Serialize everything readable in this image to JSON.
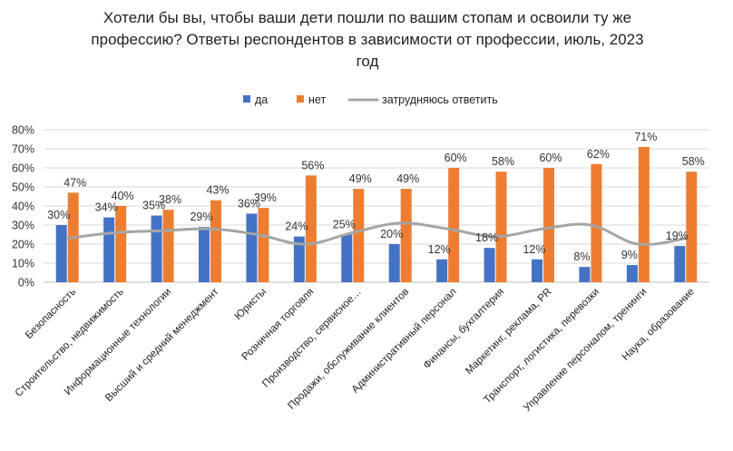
{
  "chart_data": {
    "type": "bar",
    "title_lines": [
      "Хотели бы вы, чтобы ваши дети пошли по вашим стопам и освоили ту же",
      "профессию? Ответы респондентов в зависимости от профессии, июль, 2023",
      "год"
    ],
    "categories": [
      "Безопасность",
      "Строительство, недвижимость",
      "Информационные технологии",
      "Высший и средний менеджмент",
      "Юристы",
      "Розничная торговля",
      "Производство, сервисное…",
      "Продажи, обслуживание клиентов",
      "Административный персонал",
      "Финансы, бухгалтерия",
      "Маркетинг, реклама, PR",
      "Транспорт, логистика, перевозки",
      "Управление персоналом, тренинги",
      "Наука, образование"
    ],
    "series": [
      {
        "name": "да",
        "kind": "bar",
        "color": "#4472C4",
        "values": [
          30,
          34,
          35,
          29,
          36,
          24,
          25,
          20,
          12,
          18,
          12,
          8,
          9,
          19
        ]
      },
      {
        "name": "нет",
        "kind": "bar",
        "color": "#ED7D31",
        "values": [
          47,
          40,
          38,
          43,
          39,
          56,
          49,
          49,
          60,
          58,
          60,
          62,
          71,
          58
        ]
      },
      {
        "name": "затрудняюсь ответить",
        "kind": "line",
        "color": "#A5A5A5",
        "values": [
          23,
          26,
          27,
          28,
          25,
          20,
          26,
          31,
          28,
          24,
          28,
          30,
          20,
          23
        ]
      }
    ],
    "yticks": [
      "0%",
      "10%",
      "20%",
      "30%",
      "40%",
      "50%",
      "60%",
      "70%",
      "80%"
    ],
    "ylim": [
      0,
      80
    ],
    "legend_position": "top",
    "grid": true
  }
}
